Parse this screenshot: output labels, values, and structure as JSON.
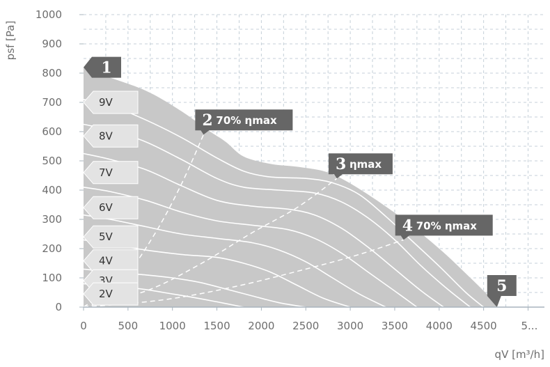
{
  "chart_data": {
    "type": "line",
    "title": "",
    "xlabel": "qV [m³/h]",
    "ylabel": "psf [Pa]",
    "xlim": [
      0,
      5000
    ],
    "ylim": [
      0,
      1000
    ],
    "x_ticks": [
      "0",
      "500",
      "1000",
      "1500",
      "2000",
      "2500",
      "3000",
      "3500",
      "4000",
      "4500",
      "5..."
    ],
    "y_ticks": [
      "0",
      "100",
      "200",
      "300",
      "400",
      "500",
      "600",
      "700",
      "800",
      "900",
      "1000"
    ],
    "grid": true,
    "envelope": {
      "fill": "#c8c8c8",
      "x": [
        0,
        200,
        700,
        1100,
        1400,
        1600,
        1800,
        2100,
        2400,
        2700,
        2900,
        3200,
        3600,
        4000,
        4300,
        4550,
        4650
      ],
      "y": [
        820,
        795,
        740,
        670,
        605,
        565,
        515,
        490,
        480,
        465,
        440,
        385,
        300,
        200,
        115,
        40,
        0
      ]
    },
    "series": [
      {
        "name": "9V",
        "x": [
          0,
          300,
          700,
          1100,
          1500,
          1800,
          2100,
          2500,
          2800,
          3100,
          3400,
          3700,
          4000,
          4300,
          4500
        ],
        "y": [
          710,
          690,
          640,
          580,
          510,
          465,
          445,
          440,
          425,
          385,
          310,
          225,
          140,
          50,
          0
        ]
      },
      {
        "name": "8V",
        "x": [
          0,
          300,
          700,
          1100,
          1500,
          1800,
          2200,
          2600,
          2900,
          3200,
          3500,
          3800,
          4100,
          4350
        ],
        "y": [
          625,
          605,
          565,
          505,
          440,
          410,
          400,
          390,
          360,
          305,
          230,
          140,
          60,
          0
        ]
      },
      {
        "name": "7V",
        "x": [
          0,
          300,
          700,
          1100,
          1500,
          1900,
          2300,
          2600,
          2900,
          3200,
          3500,
          3800,
          4050
        ],
        "y": [
          525,
          505,
          470,
          415,
          365,
          345,
          335,
          315,
          270,
          205,
          130,
          55,
          0
        ]
      },
      {
        "name": "6V",
        "x": [
          0,
          300,
          700,
          1100,
          1500,
          1900,
          2300,
          2600,
          2900,
          3200,
          3500,
          3750
        ],
        "y": [
          410,
          395,
          365,
          325,
          295,
          280,
          265,
          235,
          185,
          120,
          55,
          0
        ]
      },
      {
        "name": "5V",
        "x": [
          0,
          300,
          700,
          1100,
          1500,
          1900,
          2200,
          2500,
          2800,
          3100,
          3400
        ],
        "y": [
          315,
          300,
          275,
          250,
          235,
          220,
          195,
          155,
          100,
          45,
          0
        ]
      },
      {
        "name": "4V",
        "x": [
          0,
          300,
          700,
          1100,
          1500,
          1800,
          2100,
          2400,
          2700,
          3000
        ],
        "y": [
          230,
          215,
          195,
          180,
          170,
          150,
          120,
          75,
          30,
          0
        ]
      },
      {
        "name": "3V",
        "x": [
          0,
          300,
          700,
          1000,
          1300,
          1600,
          1900,
          2200,
          2500
        ],
        "y": [
          130,
          120,
          110,
          100,
          85,
          62,
          38,
          15,
          0
        ]
      },
      {
        "name": "2V",
        "x": [
          0,
          300,
          700,
          900,
          1200,
          1500,
          1800
        ],
        "y": [
          80,
          75,
          60,
          50,
          35,
          18,
          0
        ]
      }
    ],
    "voltage_labels": [
      "9V",
      "8V",
      "7V",
      "6V",
      "5V",
      "4V",
      "3V",
      "2V"
    ],
    "voltage_label_y": [
      700,
      585,
      460,
      340,
      240,
      158,
      90,
      45
    ],
    "dashed_lines": [
      {
        "name": "70% ηmax (2)",
        "x": [
          0,
          450,
          800,
          1100,
          1350
        ],
        "y": [
          0,
          100,
          250,
          420,
          590
        ]
      },
      {
        "name": "ηmax (3)",
        "x": [
          0,
          700,
          1300,
          1900,
          2400,
          2850
        ],
        "y": [
          0,
          55,
          145,
          255,
          340,
          440
        ]
      },
      {
        "name": "70% ηmax (4)",
        "x": [
          0,
          900,
          1700,
          2500,
          3100,
          3600
        ],
        "y": [
          0,
          25,
          70,
          130,
          180,
          230
        ]
      }
    ],
    "points": [
      {
        "number": "1",
        "label": "",
        "x": 0,
        "y": 820
      },
      {
        "number": "2",
        "label": "70% ηmax",
        "x": 1350,
        "y": 590
      },
      {
        "number": "3",
        "label": "ηmax",
        "x": 2850,
        "y": 440
      },
      {
        "number": "4",
        "label": "70% ηmax",
        "x": 3600,
        "y": 230
      },
      {
        "number": "5",
        "label": "",
        "x": 4650,
        "y": 0
      }
    ],
    "colors": {
      "curve": "#ffffff",
      "grid": "#c4cfd8",
      "axis": "#a8b4be",
      "label_bg": "#e3e3e3",
      "callout": "#666666"
    }
  }
}
